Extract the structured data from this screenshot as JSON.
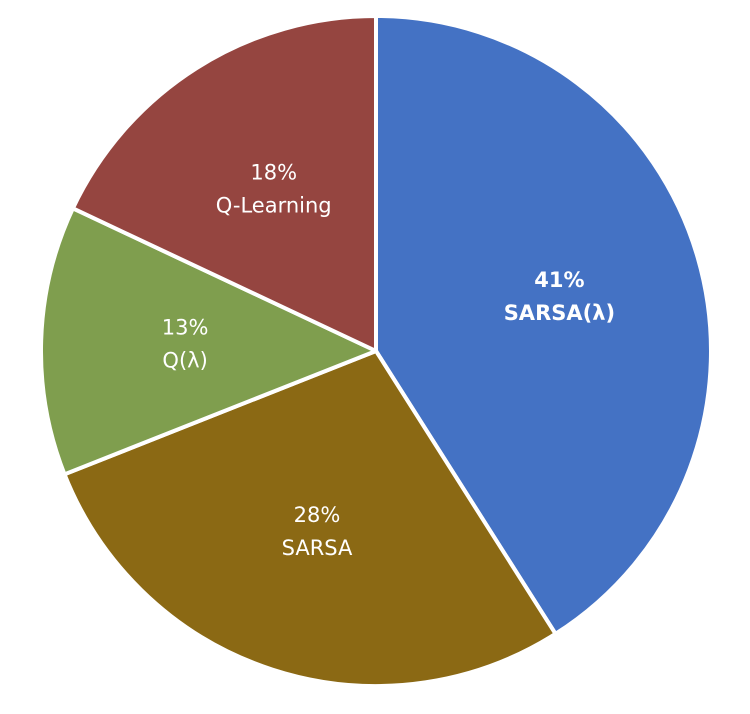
{
  "chart_data": {
    "type": "pie",
    "title": "",
    "series": [
      {
        "values": [
          41,
          28,
          13,
          18
        ],
        "labels": [
          "SARSA(λ)",
          "SARSA",
          "Q(λ)",
          "Q-Learning"
        ]
      }
    ],
    "value_labels": [
      "41%",
      "28%",
      "13%",
      "18%"
    ],
    "colors": [
      "#4472C4",
      "#8B6914",
      "#7F9E4E",
      "#954540"
    ],
    "start_angle_deg": 0,
    "direction": "clockwise",
    "legend": "none",
    "data_labels": "inside"
  }
}
